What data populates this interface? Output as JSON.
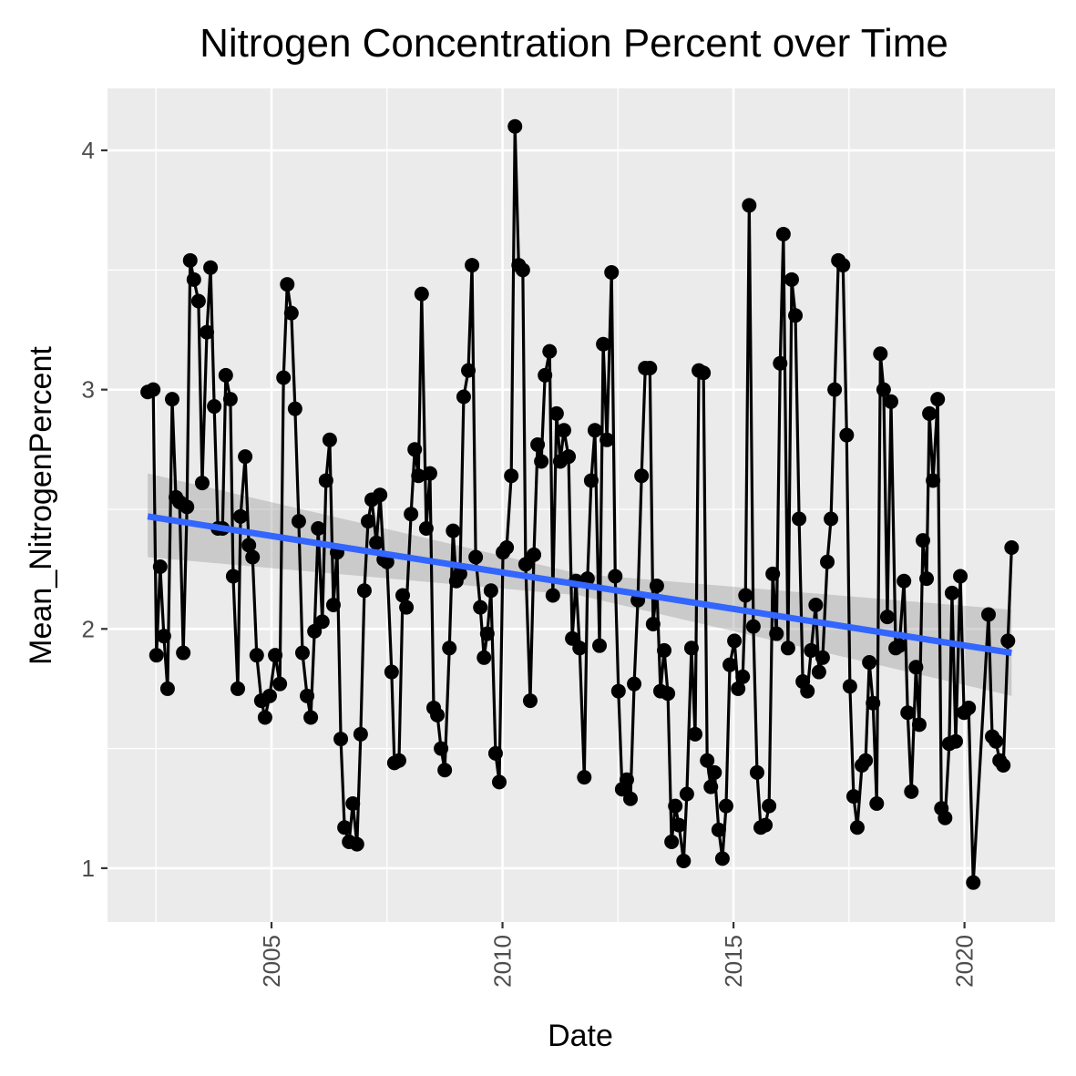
{
  "chart_data": {
    "type": "line",
    "title": "Nitrogen Concentration Percent over Time",
    "x_label": "Date",
    "y_label": "Mean_NitrogenPercent",
    "x": [
      2002.32,
      2002.44,
      2002.51,
      2002.59,
      2002.67,
      2002.75,
      2002.85,
      2002.93,
      2003.01,
      2003.09,
      2003.17,
      2003.24,
      2003.32,
      2003.42,
      2003.5,
      2003.6,
      2003.68,
      2003.76,
      2003.84,
      2003.94,
      2004.01,
      2004.11,
      2004.17,
      2004.27,
      2004.33,
      2004.43,
      2004.51,
      2004.59,
      2004.68,
      2004.78,
      2004.86,
      2004.96,
      2005.08,
      2005.18,
      2005.26,
      2005.34,
      2005.43,
      2005.51,
      2005.59,
      2005.67,
      2005.77,
      2005.85,
      2005.93,
      2006.01,
      2006.1,
      2006.18,
      2006.26,
      2006.34,
      2006.42,
      2006.5,
      2006.58,
      2006.68,
      2006.76,
      2006.85,
      2006.93,
      2007.01,
      2007.09,
      2007.17,
      2007.27,
      2007.35,
      2007.43,
      2007.5,
      2007.6,
      2007.66,
      2007.76,
      2007.84,
      2007.92,
      2008.02,
      2008.1,
      2008.18,
      2008.25,
      2008.35,
      2008.43,
      2008.51,
      2008.59,
      2008.67,
      2008.75,
      2008.85,
      2008.93,
      2009.0,
      2009.08,
      2009.16,
      2009.26,
      2009.34,
      2009.42,
      2009.52,
      2009.6,
      2009.67,
      2009.75,
      2009.85,
      2009.93,
      2010.01,
      2010.09,
      2010.19,
      2010.27,
      2010.35,
      2010.44,
      2010.5,
      2010.6,
      2010.68,
      2010.76,
      2010.84,
      2010.92,
      2011.02,
      2011.09,
      2011.17,
      2011.25,
      2011.33,
      2011.43,
      2011.51,
      2011.59,
      2011.67,
      2011.77,
      2011.84,
      2011.92,
      2012.0,
      2012.1,
      2012.18,
      2012.26,
      2012.36,
      2012.44,
      2012.51,
      2012.59,
      2012.69,
      2012.77,
      2012.85,
      2012.93,
      2013.01,
      2013.09,
      2013.19,
      2013.26,
      2013.34,
      2013.42,
      2013.5,
      2013.58,
      2013.66,
      2013.74,
      2013.82,
      2013.92,
      2013.99,
      2014.09,
      2014.17,
      2014.25,
      2014.35,
      2014.43,
      2014.51,
      2014.59,
      2014.68,
      2014.76,
      2014.84,
      2014.92,
      2015.02,
      2015.1,
      2015.2,
      2015.26,
      2015.34,
      2015.43,
      2015.51,
      2015.59,
      2015.69,
      2015.77,
      2015.85,
      2015.93,
      2016.01,
      2016.08,
      2016.18,
      2016.26,
      2016.34,
      2016.42,
      2016.5,
      2016.6,
      2016.68,
      2016.78,
      2016.85,
      2016.93,
      2017.03,
      2017.11,
      2017.19,
      2017.27,
      2017.37,
      2017.45,
      2017.52,
      2017.6,
      2017.68,
      2017.78,
      2017.86,
      2017.94,
      2018.02,
      2018.1,
      2018.18,
      2018.25,
      2018.33,
      2018.41,
      2018.51,
      2018.59,
      2018.69,
      2018.77,
      2018.85,
      2018.95,
      2019.02,
      2019.1,
      2019.18,
      2019.24,
      2019.32,
      2019.42,
      2019.5,
      2019.58,
      2019.67,
      2019.73,
      2019.81,
      2019.91,
      2019.99,
      2020.09,
      2020.19,
      2020.52,
      2020.6,
      2020.68,
      2020.76,
      2020.84,
      2020.94,
      2021.02
    ],
    "values": [
      2.99,
      3.0,
      1.89,
      2.26,
      1.97,
      1.75,
      2.96,
      2.55,
      2.53,
      1.9,
      2.51,
      3.54,
      3.46,
      3.37,
      2.61,
      3.24,
      3.51,
      2.93,
      2.42,
      2.42,
      3.06,
      2.96,
      2.22,
      1.75,
      2.47,
      2.72,
      2.35,
      2.3,
      1.89,
      1.7,
      1.63,
      1.72,
      1.89,
      1.77,
      3.05,
      3.44,
      3.32,
      2.92,
      2.45,
      1.9,
      1.72,
      1.63,
      1.99,
      2.42,
      2.03,
      2.62,
      2.79,
      2.1,
      2.32,
      1.54,
      1.17,
      1.11,
      1.27,
      1.1,
      1.56,
      2.16,
      2.45,
      2.54,
      2.36,
      2.56,
      2.29,
      2.28,
      1.82,
      1.44,
      1.45,
      2.14,
      2.09,
      2.48,
      2.75,
      2.64,
      3.4,
      2.42,
      2.65,
      1.67,
      1.64,
      1.5,
      1.41,
      1.92,
      2.41,
      2.2,
      2.23,
      2.97,
      3.08,
      3.52,
      2.3,
      2.09,
      1.88,
      1.98,
      2.16,
      1.48,
      1.36,
      2.32,
      2.34,
      2.64,
      4.1,
      3.52,
      3.5,
      2.27,
      1.7,
      2.31,
      2.77,
      2.7,
      3.06,
      3.16,
      2.14,
      2.9,
      2.7,
      2.83,
      2.72,
      1.96,
      2.2,
      1.92,
      1.38,
      2.21,
      2.62,
      2.83,
      1.93,
      3.19,
      2.79,
      3.49,
      2.22,
      1.74,
      1.33,
      1.37,
      1.29,
      1.77,
      2.12,
      2.64,
      3.09,
      3.09,
      2.02,
      2.18,
      1.74,
      1.91,
      1.73,
      1.11,
      1.26,
      1.18,
      1.03,
      1.31,
      1.92,
      1.56,
      3.08,
      3.07,
      1.45,
      1.34,
      1.4,
      1.16,
      1.04,
      1.26,
      1.85,
      1.95,
      1.75,
      1.8,
      2.14,
      3.77,
      2.01,
      1.4,
      1.17,
      1.18,
      1.26,
      2.23,
      1.98,
      3.11,
      3.65,
      1.92,
      3.46,
      3.31,
      2.46,
      1.78,
      1.74,
      1.91,
      2.1,
      1.82,
      1.88,
      2.28,
      2.46,
      3.0,
      3.54,
      3.52,
      2.81,
      1.76,
      1.3,
      1.17,
      1.43,
      1.45,
      1.86,
      1.69,
      1.27,
      3.15,
      3.0,
      2.05,
      2.95,
      1.92,
      1.93,
      2.2,
      1.65,
      1.32,
      1.84,
      1.6,
      2.37,
      2.21,
      2.9,
      2.62,
      2.96,
      1.25,
      1.21,
      1.52,
      2.15,
      1.53,
      2.22,
      1.65,
      1.67,
      0.94,
      2.06,
      1.55,
      1.53,
      1.45,
      1.43,
      1.95,
      2.34
    ],
    "color": "#000000",
    "trend": {
      "x": [
        2002.32,
        2011.67,
        2021.02
      ],
      "values": [
        2.47,
        2.185,
        1.9
      ],
      "lower": [
        2.3,
        2.14,
        1.72
      ],
      "upper": [
        2.65,
        2.23,
        2.08
      ],
      "color": "#3366ff",
      "band_color": "#999999"
    },
    "xlim": [
      2001.45,
      2021.96
    ],
    "ylim": [
      0.775,
      4.259
    ],
    "xticks": [
      2005,
      2010,
      2015,
      2020
    ],
    "yticks": [
      1,
      2,
      3,
      4
    ],
    "grid": true
  }
}
